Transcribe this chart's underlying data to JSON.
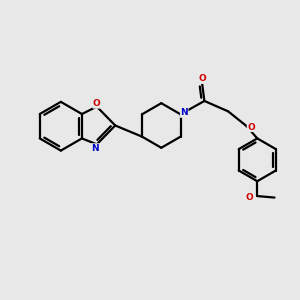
{
  "background_color": "#e8e8e8",
  "bond_color": "#000000",
  "bond_width": 1.6,
  "atom_N_color": "#0000cc",
  "atom_O_color": "#cc0000",
  "figsize": [
    3.0,
    3.0
  ],
  "dpi": 100,
  "xlim": [
    0,
    10
  ],
  "ylim": [
    0,
    10
  ]
}
